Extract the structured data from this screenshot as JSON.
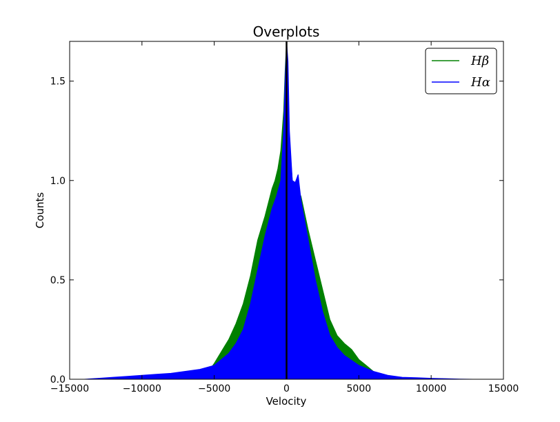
{
  "chart_data": {
    "type": "area",
    "title": "Overplots",
    "xlabel": "Velocity",
    "ylabel": "Counts",
    "xlim": [
      -15000,
      15000
    ],
    "ylim": [
      0,
      1.7
    ],
    "xticks": [
      -15000,
      -10000,
      -5000,
      0,
      5000,
      10000,
      15000
    ],
    "xtick_labels": [
      "−15000",
      "−10000",
      "−5000",
      "0",
      "5000",
      "10000",
      "15000"
    ],
    "yticks": [
      0.0,
      0.5,
      1.0,
      1.5
    ],
    "ytick_labels": [
      "0.0",
      "0.5",
      "1.0",
      "1.5"
    ],
    "grid": false,
    "legend_position": "top-right",
    "vline_x": 0,
    "series": [
      {
        "name": "Hβ",
        "color": "#008000",
        "x": [
          -6000,
          -5500,
          -5000,
          -4500,
          -4000,
          -3500,
          -3000,
          -2500,
          -2000,
          -1500,
          -1000,
          -800,
          -600,
          -400,
          -200,
          -100,
          0,
          100,
          200,
          400,
          600,
          800,
          1000,
          1500,
          2000,
          2500,
          3000,
          3500,
          4000,
          4500,
          5000,
          5500,
          6000,
          6500,
          7000,
          7300
        ],
        "y": [
          0.0,
          0.03,
          0.08,
          0.14,
          0.2,
          0.28,
          0.38,
          0.52,
          0.7,
          0.82,
          0.96,
          1.0,
          1.06,
          1.15,
          1.35,
          1.55,
          1.7,
          1.5,
          1.2,
          1.0,
          0.97,
          0.95,
          0.92,
          0.75,
          0.6,
          0.45,
          0.3,
          0.22,
          0.18,
          0.15,
          0.1,
          0.07,
          0.04,
          0.02,
          0.0,
          0.0
        ]
      },
      {
        "name": "Hα",
        "color": "#0000ff",
        "x": [
          -14000,
          -13000,
          -12000,
          -11000,
          -10000,
          -9000,
          -8000,
          -7000,
          -6000,
          -5000,
          -4500,
          -4000,
          -3500,
          -3000,
          -2500,
          -2000,
          -1500,
          -1000,
          -700,
          -400,
          -200,
          -100,
          0,
          100,
          200,
          400,
          600,
          800,
          1000,
          1500,
          2000,
          2500,
          3000,
          3500,
          4000,
          5000,
          6000,
          7000,
          8000,
          9000,
          10000,
          11000,
          12000,
          12900
        ],
        "y": [
          0.0,
          0.005,
          0.01,
          0.015,
          0.02,
          0.025,
          0.03,
          0.04,
          0.05,
          0.07,
          0.1,
          0.13,
          0.18,
          0.25,
          0.38,
          0.55,
          0.72,
          0.86,
          0.92,
          1.0,
          1.25,
          1.5,
          1.7,
          1.6,
          1.25,
          1.0,
          0.99,
          1.03,
          0.9,
          0.7,
          0.5,
          0.34,
          0.22,
          0.16,
          0.12,
          0.07,
          0.04,
          0.02,
          0.01,
          0.008,
          0.005,
          0.003,
          0.001,
          0.0
        ]
      }
    ]
  }
}
